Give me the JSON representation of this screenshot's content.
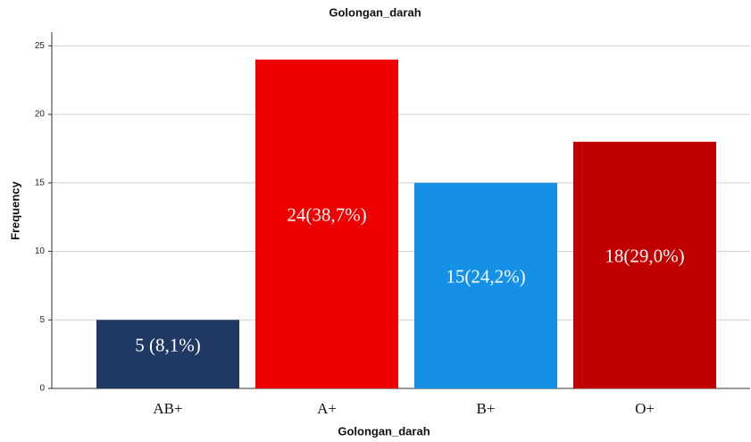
{
  "chart_data": {
    "type": "bar",
    "title": "Golongan_darah",
    "x_label": "Golongan_darah",
    "y_label": "Frequency",
    "categories": [
      "AB+",
      "A+",
      "B+",
      "O+"
    ],
    "values": [
      5,
      24,
      15,
      18
    ],
    "value_labels": [
      "5 (8,1%)",
      "24(38,7%)",
      "15(24,2%)",
      "18(29,0%)"
    ],
    "colors": [
      "#1f3864",
      "#ee0000",
      "#1490e6",
      "#c00000"
    ],
    "ylim": [
      0,
      26
    ],
    "yticks": [
      0,
      5,
      10,
      15,
      20,
      25
    ],
    "grid": true
  }
}
